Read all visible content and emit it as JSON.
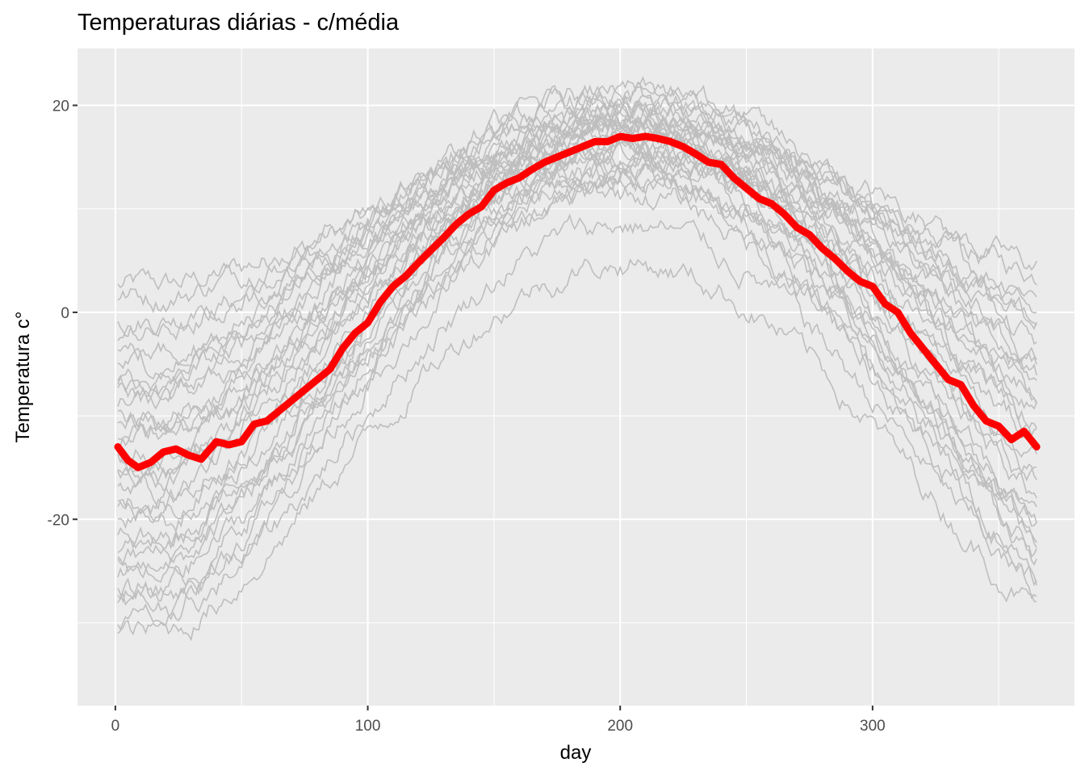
{
  "chart_data": {
    "type": "line",
    "title": "Temperaturas diárias - c/média",
    "xlabel": "day",
    "ylabel": "Temperatura c°",
    "xlim": [
      -15,
      380
    ],
    "ylim": [
      -38,
      25.5
    ],
    "x_ticks": [
      0,
      100,
      200,
      300
    ],
    "x_tick_labels": [
      "0",
      "100",
      "200",
      "300"
    ],
    "y_ticks": [
      -20,
      0,
      20
    ],
    "y_tick_labels": [
      "-20",
      "0",
      "20"
    ],
    "grid": true,
    "legend": "none",
    "colors": {
      "panel_background": "#ebebeb",
      "grid": "#ffffff",
      "station_series": "#bebebe",
      "mean_series": "#ff0000"
    },
    "day_range": [
      1,
      365
    ],
    "station_series_profiles": [
      {
        "winter": 2.5,
        "summer": 14.5,
        "end": 2.7
      },
      {
        "winter": -0.5,
        "summer": 12.5,
        "end": 1.5
      },
      {
        "winter": 1.5,
        "summer": 17.5,
        "end": 3.0
      },
      {
        "winter": -2.0,
        "summer": 19.0,
        "end": -2.5
      },
      {
        "winter": -5.0,
        "summer": 20.5,
        "end": -4.0
      },
      {
        "winter": -7.0,
        "summer": 19.5,
        "end": -5.5
      },
      {
        "winter": -8.0,
        "summer": 18.0,
        "end": -7.0
      },
      {
        "winter": -9.0,
        "summer": 21.0,
        "end": -9.5
      },
      {
        "winter": -10.0,
        "summer": 17.0,
        "end": -10.5
      },
      {
        "winter": -11.5,
        "summer": 19.0,
        "end": -12.0
      },
      {
        "winter": -12.5,
        "summer": 20.0,
        "end": -11.0
      },
      {
        "winter": -13.5,
        "summer": 18.0,
        "end": -13.5
      },
      {
        "winter": -14.5,
        "summer": 16.5,
        "end": -15.0
      },
      {
        "winter": -16.0,
        "summer": 19.5,
        "end": -17.0
      },
      {
        "winter": -17.0,
        "summer": 17.0,
        "end": -18.5
      },
      {
        "winter": -18.0,
        "summer": 15.5,
        "end": -20.0
      },
      {
        "winter": -19.5,
        "summer": 18.5,
        "end": -21.0
      },
      {
        "winter": -20.5,
        "summer": 16.0,
        "end": -22.5
      },
      {
        "winter": -21.5,
        "summer": 14.5,
        "end": -23.5
      },
      {
        "winter": -22.5,
        "summer": 17.5,
        "end": -24.0
      },
      {
        "winter": -23.5,
        "summer": 13.5,
        "end": -24.5
      },
      {
        "winter": -24.5,
        "summer": 15.0,
        "end": -25.5
      },
      {
        "winter": -25.5,
        "summer": 12.5,
        "end": -26.5
      },
      {
        "winter": -26.5,
        "summer": 16.0,
        "end": -27.0
      },
      {
        "winter": -27.5,
        "summer": 11.5,
        "end": -28.0
      },
      {
        "winter": -28.5,
        "summer": 13.0,
        "end": -29.5
      },
      {
        "winter": -30.0,
        "summer": 8.5,
        "end": -30.5
      },
      {
        "winter": -31.0,
        "summer": 4.8,
        "end": -31.5
      },
      {
        "winter": -6.5,
        "summer": 21.5,
        "end": -6.0
      },
      {
        "winter": -4.0,
        "summer": 18.5,
        "end": -3.0
      },
      {
        "winter": -15.5,
        "summer": 21.0,
        "end": -14.0
      },
      {
        "winter": -10.5,
        "summer": 16.0,
        "end": -8.0
      }
    ],
    "mean_series": {
      "x": [
        1,
        5,
        9,
        14,
        19,
        24,
        29,
        34,
        40,
        45,
        50,
        55,
        60,
        65,
        70,
        75,
        80,
        85,
        90,
        95,
        100,
        105,
        110,
        115,
        120,
        125,
        130,
        135,
        140,
        145,
        150,
        155,
        160,
        165,
        170,
        175,
        180,
        185,
        190,
        195,
        200,
        205,
        210,
        215,
        220,
        225,
        230,
        235,
        240,
        245,
        250,
        255,
        260,
        265,
        270,
        275,
        280,
        285,
        290,
        295,
        300,
        305,
        310,
        315,
        320,
        325,
        330,
        335,
        340,
        345,
        350,
        355,
        360,
        365
      ],
      "y": [
        -13,
        -14.3,
        -15,
        -14.5,
        -13.5,
        -13.2,
        -13.8,
        -14.2,
        -12.5,
        -12.8,
        -12.5,
        -10.8,
        -10.5,
        -9.5,
        -8.5,
        -7.5,
        -6.5,
        -5.5,
        -3.5,
        -2,
        -1,
        1,
        2.5,
        3.5,
        4.8,
        6,
        7.2,
        8.5,
        9.5,
        10.2,
        11.8,
        12.5,
        13,
        13.8,
        14.5,
        15,
        15.5,
        16,
        16.5,
        16.5,
        17,
        16.8,
        17,
        16.8,
        16.5,
        16,
        15.3,
        14.5,
        14.3,
        13,
        12,
        11,
        10.5,
        9.5,
        8.2,
        7.5,
        6.2,
        5.2,
        4,
        3,
        2.5,
        0.8,
        0,
        -2,
        -3.5,
        -5,
        -6.5,
        -7,
        -9,
        -10.5,
        -11,
        -12.3,
        -11.5,
        -13
      ]
    }
  }
}
